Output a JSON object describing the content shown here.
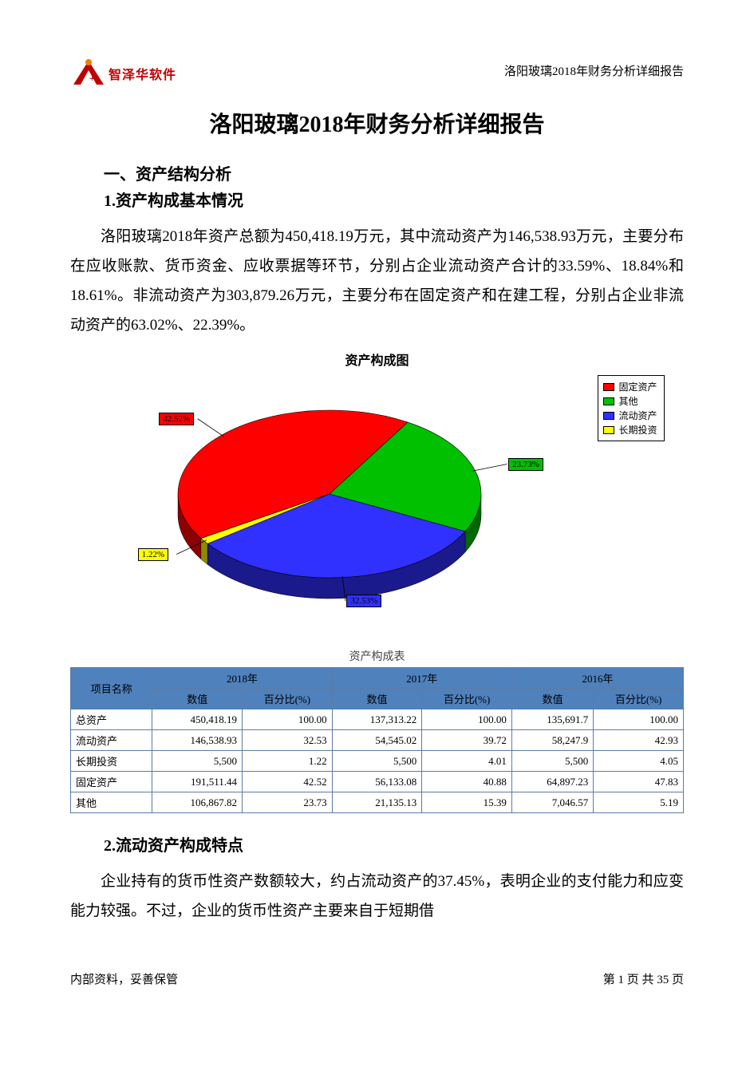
{
  "header": {
    "logo_text": "智泽华软件",
    "logo_colors": {
      "primary": "#c00000",
      "accent": "#f08000"
    },
    "right_text": "洛阳玻璃2018年财务分析详细报告"
  },
  "title": "洛阳玻璃2018年财务分析详细报告",
  "section1": {
    "heading": "一、资产结构分析",
    "sub1": {
      "heading": "1.资产构成基本情况",
      "paragraph": "洛阳玻璃2018年资产总额为450,418.19万元，其中流动资产为146,538.93万元，主要分布在应收账款、货币资金、应收票据等环节，分别占企业流动资产合计的33.59%、18.84%和18.61%。非流动资产为303,879.26万元，主要分布在固定资产和在建工程，分别占企业非流动资产的63.02%、22.39%。"
    },
    "sub2": {
      "heading": "2.流动资产构成特点",
      "paragraph": "企业持有的货币性资产数额较大，约占流动资产的37.45%，表明企业的支付能力和应变能力较强。不过，企业的货币性资产主要来自于短期借"
    }
  },
  "pie_chart": {
    "type": "pie_3d",
    "title": "资产构成图",
    "background_color": "#ffffff",
    "tilt_deg": 55,
    "label_border_color": "#000000",
    "label_fontsize": 11,
    "title_fontsize": 16,
    "legend": {
      "border_color": "#000000",
      "position": "top-right",
      "fontsize": 12
    },
    "slices": [
      {
        "name": "固定资产",
        "value": 42.52,
        "label": "42.52%",
        "color": "#ff0000"
      },
      {
        "name": "其他",
        "value": 23.73,
        "label": "23.73%",
        "color": "#00c000"
      },
      {
        "name": "流动资产",
        "value": 32.53,
        "label": "32.53%",
        "color": "#3030ff"
      },
      {
        "name": "长期投资",
        "value": 1.22,
        "label": "1.22%",
        "color": "#ffff00"
      }
    ],
    "start_angle_deg": 148
  },
  "table": {
    "caption": "资产构成表",
    "header_bg": "#4f81bd",
    "border_color": "#5b7ca8",
    "fontsize": 13,
    "col_group_labels": [
      "项目名称",
      "2018年",
      "2017年",
      "2016年"
    ],
    "sub_headers": [
      "数值",
      "百分比(%)"
    ],
    "rows": [
      {
        "name": "总资产",
        "y2018_v": "450,418.19",
        "y2018_p": "100.00",
        "y2017_v": "137,313.22",
        "y2017_p": "100.00",
        "y2016_v": "135,691.7",
        "y2016_p": "100.00"
      },
      {
        "name": "流动资产",
        "y2018_v": "146,538.93",
        "y2018_p": "32.53",
        "y2017_v": "54,545.02",
        "y2017_p": "39.72",
        "y2016_v": "58,247.9",
        "y2016_p": "42.93"
      },
      {
        "name": "长期投资",
        "y2018_v": "5,500",
        "y2018_p": "1.22",
        "y2017_v": "5,500",
        "y2017_p": "4.01",
        "y2016_v": "5,500",
        "y2016_p": "4.05"
      },
      {
        "name": "固定资产",
        "y2018_v": "191,511.44",
        "y2018_p": "42.52",
        "y2017_v": "56,133.08",
        "y2017_p": "40.88",
        "y2016_v": "64,897.23",
        "y2016_p": "47.83"
      },
      {
        "name": "其他",
        "y2018_v": "106,867.82",
        "y2018_p": "23.73",
        "y2017_v": "21,135.13",
        "y2017_p": "15.39",
        "y2016_v": "7,046.57",
        "y2016_p": "5.19"
      }
    ]
  },
  "footer": {
    "left": "内部资料，妥善保管",
    "right": "第 1 页   共 35 页"
  }
}
